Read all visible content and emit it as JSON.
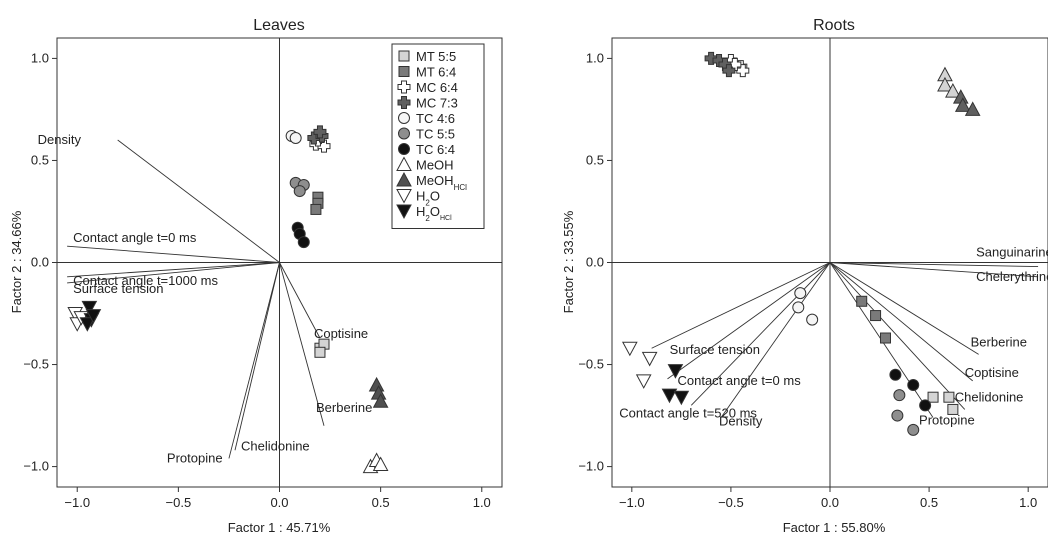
{
  "chart_data": [
    {
      "type": "scatter",
      "title": "Leaves",
      "xlabel": "Factor 1 : 45.71%",
      "ylabel": "Factor 2 : 34.66%",
      "xlim": [
        -1.1,
        1.1
      ],
      "ylim": [
        -1.1,
        1.1
      ],
      "xticks": [
        -1.0,
        -0.5,
        0.0,
        0.5,
        1.0
      ],
      "yticks": [
        1.0,
        0.5,
        0.0,
        -0.5,
        -1.0
      ],
      "xtick_labels": [
        "−1.0",
        "−0.5",
        "0.0",
        "0.5",
        "1.0"
      ],
      "ytick_labels": [
        "1.0",
        "0.5",
        "0.0",
        "−0.5",
        "−1.0"
      ],
      "legend_position": "top-right",
      "variables": [
        {
          "name": "Density",
          "x": -0.8,
          "y": 0.6
        },
        {
          "name": "Contact angle t=0 ms",
          "x": -1.05,
          "y": 0.08
        },
        {
          "name": "Contact angle t=1000 ms",
          "x": -1.05,
          "y": -0.07
        },
        {
          "name": "Surface tension",
          "x": -1.05,
          "y": -0.1
        },
        {
          "name": "Coptisine",
          "x": 0.2,
          "y": -0.37
        },
        {
          "name": "Berberine",
          "x": 0.22,
          "y": -0.8
        },
        {
          "name": "Protopine",
          "x": -0.25,
          "y": -0.96
        },
        {
          "name": "Chelidonine",
          "x": -0.22,
          "y": -0.92
        }
      ],
      "series": [
        {
          "name": "MT 5:5",
          "marker": "square",
          "fill": "#d4d4d4",
          "points": [
            [
              0.2,
              -0.42
            ],
            [
              0.22,
              -0.4
            ],
            [
              0.2,
              -0.44
            ]
          ]
        },
        {
          "name": "MT 6:4",
          "marker": "square",
          "fill": "#7a7a7a",
          "points": [
            [
              0.19,
              0.32
            ],
            [
              0.19,
              0.29
            ],
            [
              0.18,
              0.26
            ]
          ]
        },
        {
          "name": "MC 6:4",
          "marker": "cross",
          "fill": "#ffffff",
          "points": [
            [
              0.18,
              0.58
            ],
            [
              0.22,
              0.57
            ],
            [
              0.19,
              0.6
            ]
          ]
        },
        {
          "name": "MC 7:3",
          "marker": "cross",
          "fill": "#606060",
          "points": [
            [
              0.17,
              0.61
            ],
            [
              0.21,
              0.62
            ],
            [
              0.2,
              0.64
            ]
          ]
        },
        {
          "name": "TC 4:6",
          "marker": "circle",
          "fill": "#f5f5f5",
          "points": [
            [
              0.06,
              0.62
            ],
            [
              0.08,
              0.61
            ]
          ]
        },
        {
          "name": "TC 5:5",
          "marker": "circle",
          "fill": "#8e8e8e",
          "points": [
            [
              0.08,
              0.39
            ],
            [
              0.12,
              0.38
            ],
            [
              0.1,
              0.35
            ]
          ]
        },
        {
          "name": "TC 6:4",
          "marker": "circle",
          "fill": "#111111",
          "points": [
            [
              0.09,
              0.17
            ],
            [
              0.1,
              0.14
            ],
            [
              0.12,
              0.1
            ]
          ]
        },
        {
          "name": "MeOH",
          "marker": "triangle-up",
          "fill": "#ffffff",
          "points": [
            [
              0.45,
              -1.0
            ],
            [
              0.48,
              -0.97
            ],
            [
              0.5,
              -0.99
            ]
          ]
        },
        {
          "name": "MeOH",
          "name_sub": "HCl",
          "marker": "triangle-up",
          "fill": "#505050",
          "points": [
            [
              0.48,
              -0.6
            ],
            [
              0.49,
              -0.64
            ],
            [
              0.5,
              -0.68
            ]
          ]
        },
        {
          "name": "H",
          "name_sub": "2",
          "name_tail": "O",
          "marker": "triangle-down",
          "fill": "#ffffff",
          "points": [
            [
              -1.01,
              -0.25
            ],
            [
              -1.0,
              -0.3
            ],
            [
              -0.98,
              -0.27
            ]
          ]
        },
        {
          "name": "H",
          "name_sub": "2",
          "name_tail": "O",
          "name_sub2": "HCl",
          "marker": "triangle-down",
          "fill": "#111111",
          "points": [
            [
              -0.94,
              -0.22
            ],
            [
              -0.93,
              -0.28
            ],
            [
              -0.95,
              -0.3
            ],
            [
              -0.92,
              -0.26
            ]
          ]
        }
      ]
    },
    {
      "type": "scatter",
      "title": "Roots",
      "xlabel": "Factor 1 : 55.80%",
      "ylabel": "Factor 2 : 33.55%",
      "xlim": [
        -1.1,
        1.1
      ],
      "ylim": [
        -1.1,
        1.1
      ],
      "xticks": [
        -1.0,
        -0.5,
        0.0,
        0.5,
        1.0
      ],
      "yticks": [
        1.0,
        0.5,
        0.0,
        -0.5,
        -1.0
      ],
      "xtick_labels": [
        "−1.0",
        "−0.5",
        "0.0",
        "0.5",
        "1.0"
      ],
      "ytick_labels": [
        "1.0",
        "0.5",
        "0.0",
        "−0.5",
        "−1.0"
      ],
      "variables": [
        {
          "name": "Sanguinarine",
          "x": 1.05,
          "y": -0.02
        },
        {
          "name": "Chelerythrine",
          "x": 1.05,
          "y": -0.07
        },
        {
          "name": "Berberine",
          "x": 0.75,
          "y": -0.45
        },
        {
          "name": "Coptisine",
          "x": 0.72,
          "y": -0.58
        },
        {
          "name": "Chelidonine",
          "x": 0.68,
          "y": -0.72
        },
        {
          "name": "Protopine",
          "x": 0.52,
          "y": -0.76
        },
        {
          "name": "Surface tension",
          "x": -0.9,
          "y": -0.42
        },
        {
          "name": "Contact angle t=0 ms",
          "x": -0.82,
          "y": -0.57
        },
        {
          "name": "Contact angle t=520 ms",
          "x": -0.7,
          "y": -0.7
        },
        {
          "name": "Density",
          "x": -0.55,
          "y": -0.76
        }
      ],
      "series": [
        {
          "name": "MT 5:5",
          "marker": "square",
          "fill": "#d4d4d4",
          "points": [
            [
              0.52,
              -0.66
            ],
            [
              0.6,
              -0.66
            ],
            [
              0.62,
              -0.72
            ]
          ]
        },
        {
          "name": "MT 6:4",
          "marker": "square",
          "fill": "#7a7a7a",
          "points": [
            [
              0.16,
              -0.19
            ],
            [
              0.23,
              -0.26
            ],
            [
              0.28,
              -0.37
            ]
          ]
        },
        {
          "name": "MC 6:4",
          "marker": "cross",
          "fill": "#ffffff",
          "points": [
            [
              -0.5,
              0.99
            ],
            [
              -0.45,
              0.96
            ],
            [
              -0.44,
              0.94
            ],
            [
              -0.48,
              0.97
            ]
          ]
        },
        {
          "name": "MC 7:3",
          "marker": "cross",
          "fill": "#606060",
          "points": [
            [
              -0.6,
              1.0
            ],
            [
              -0.56,
              0.99
            ],
            [
              -0.53,
              0.97
            ],
            [
              -0.51,
              0.94
            ]
          ]
        },
        {
          "name": "TC 4:6",
          "marker": "circle",
          "fill": "#f5f5f5",
          "points": [
            [
              -0.15,
              -0.15
            ],
            [
              -0.16,
              -0.22
            ],
            [
              -0.09,
              -0.28
            ]
          ]
        },
        {
          "name": "TC 5:5",
          "marker": "circle",
          "fill": "#8e8e8e",
          "points": [
            [
              0.35,
              -0.65
            ],
            [
              0.34,
              -0.75
            ],
            [
              0.42,
              -0.82
            ]
          ]
        },
        {
          "name": "TC 6:4",
          "marker": "circle",
          "fill": "#111111",
          "points": [
            [
              0.33,
              -0.55
            ],
            [
              0.42,
              -0.6
            ],
            [
              0.48,
              -0.7
            ]
          ]
        },
        {
          "name": "MeOH",
          "marker": "triangle-up",
          "fill": "#d4d4d4",
          "points": [
            [
              0.58,
              0.92
            ],
            [
              0.58,
              0.87
            ],
            [
              0.62,
              0.84
            ]
          ]
        },
        {
          "name": "MeOH",
          "name_sub": "HCl",
          "marker": "triangle-up",
          "fill": "#606060",
          "points": [
            [
              0.66,
              0.81
            ],
            [
              0.67,
              0.77
            ],
            [
              0.72,
              0.75
            ]
          ]
        },
        {
          "name": "H",
          "name_sub": "2",
          "name_tail": "O",
          "marker": "triangle-down",
          "fill": "#ffffff",
          "points": [
            [
              -1.01,
              -0.42
            ],
            [
              -0.91,
              -0.47
            ],
            [
              -0.94,
              -0.58
            ]
          ]
        },
        {
          "name": "H",
          "name_sub": "2",
          "name_tail": "O",
          "name_sub2": "HCl",
          "marker": "triangle-down",
          "fill": "#111111",
          "points": [
            [
              -0.81,
              -0.65
            ],
            [
              -0.75,
              -0.66
            ],
            [
              -0.78,
              -0.53
            ]
          ]
        }
      ]
    }
  ]
}
